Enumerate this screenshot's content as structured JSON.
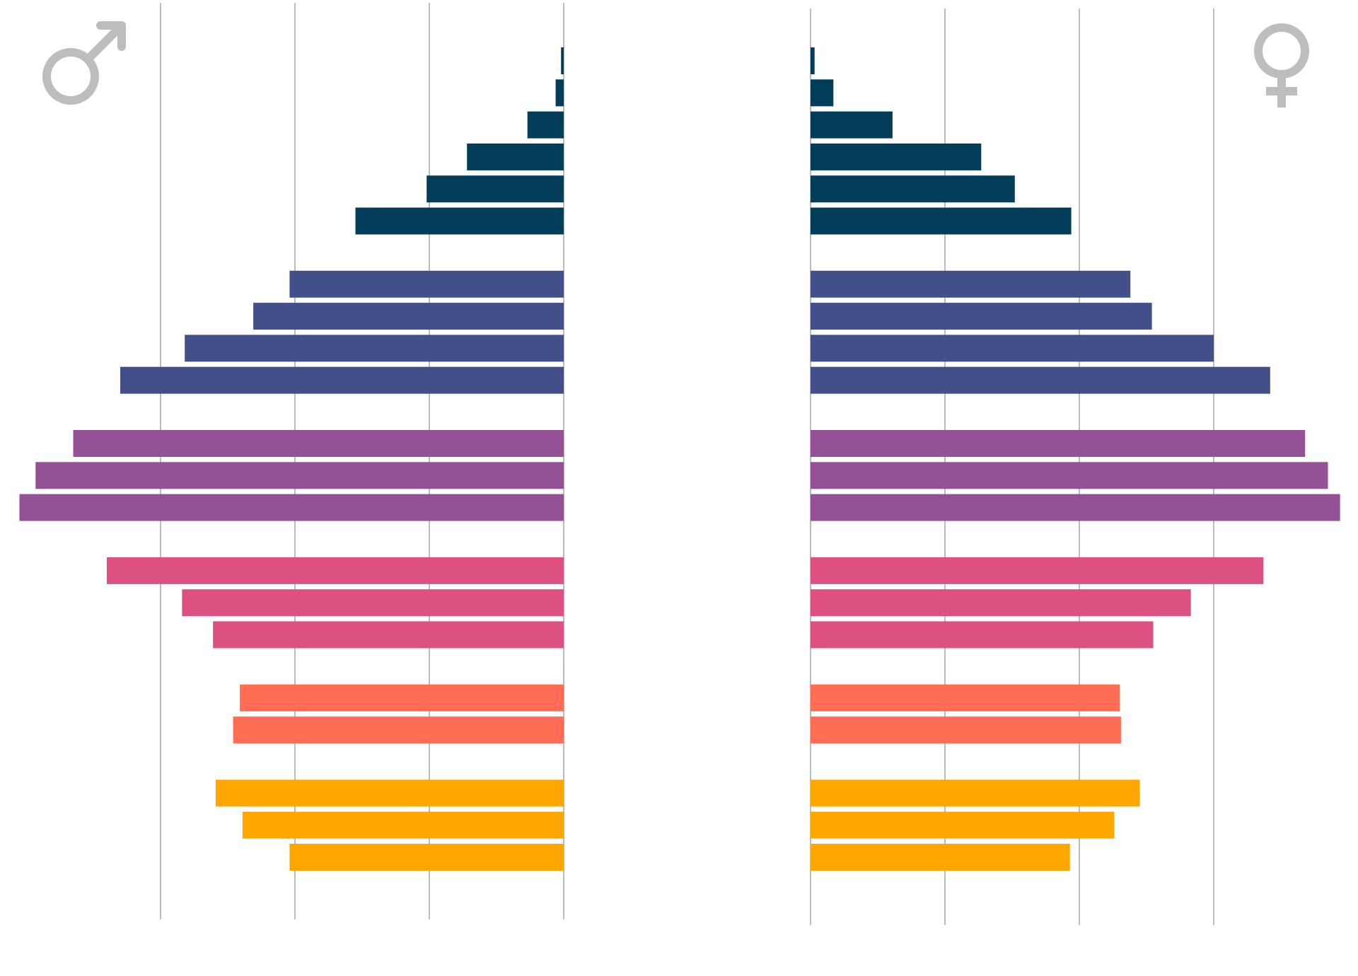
{
  "icons": {
    "male": "male-symbol-icon",
    "female": "female-symbol-icon",
    "color": "#bdbdbd"
  },
  "chart_data": {
    "type": "bar",
    "orientation": "horizontal",
    "layout": "population-pyramid",
    "title": "",
    "xlabel": "",
    "ylabel": "",
    "grid": true,
    "legend": "none",
    "tick_labels_shown": false,
    "xlim": [
      0,
      4
    ],
    "note": "",
    "groups": [
      {
        "color": "#023e5a",
        "rows": [
          {
            "male": 0.02,
            "female": 0.03
          },
          {
            "male": 0.06,
            "female": 0.17
          },
          {
            "male": 0.27,
            "female": 0.61
          },
          {
            "male": 0.72,
            "female": 1.27
          },
          {
            "male": 1.02,
            "female": 1.52
          },
          {
            "male": 1.55,
            "female": 1.94
          }
        ]
      },
      {
        "color": "#424f88",
        "rows": [
          {
            "male": 2.04,
            "female": 2.38
          },
          {
            "male": 2.31,
            "female": 2.54
          },
          {
            "male": 2.82,
            "female": 3.0
          },
          {
            "male": 3.3,
            "female": 3.42
          }
        ]
      },
      {
        "color": "#955196",
        "rows": [
          {
            "male": 3.65,
            "female": 3.68
          },
          {
            "male": 3.93,
            "female": 3.85
          },
          {
            "male": 4.05,
            "female": 3.94
          }
        ]
      },
      {
        "color": "#dd5182",
        "rows": [
          {
            "male": 3.4,
            "female": 3.37
          },
          {
            "male": 2.84,
            "female": 2.83
          },
          {
            "male": 2.61,
            "female": 2.55
          }
        ]
      },
      {
        "color": "#ff6e54",
        "rows": [
          {
            "male": 2.41,
            "female": 2.3
          },
          {
            "male": 2.46,
            "female": 2.31
          }
        ]
      },
      {
        "color": "#ffa600",
        "rows": [
          {
            "male": 2.59,
            "female": 2.45
          },
          {
            "male": 2.39,
            "female": 2.26
          },
          {
            "male": 2.04,
            "female": 1.93
          }
        ]
      }
    ]
  }
}
